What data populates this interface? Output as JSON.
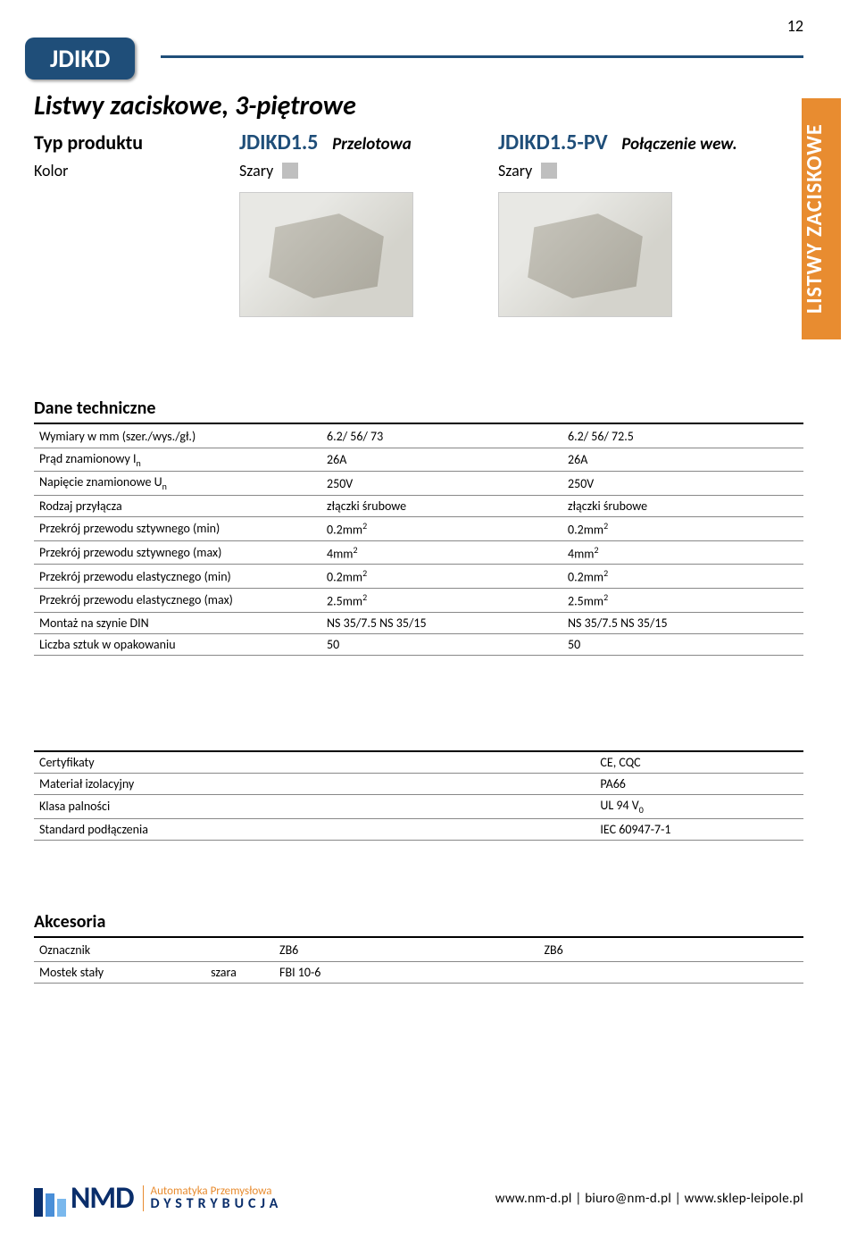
{
  "page_number": "12",
  "title_badge": "JDIKD",
  "subtitle": "Listwy zaciskowe, 3-piętrowe",
  "side_tab": "LISTWY ZACISKOWE",
  "header": {
    "typ_label": "Typ produktu",
    "kolor_label": "Kolor",
    "product_a": {
      "name": "JDIKD1.5",
      "desc": "Przelotowa",
      "color": "Szary",
      "swatch": "#bfbfbf"
    },
    "product_b": {
      "name": "JDIKD1.5-PV",
      "desc": "Połączenie wew.",
      "color": "Szary",
      "swatch": "#bfbfbf"
    }
  },
  "dane": {
    "title": "Dane techniczne",
    "rows": [
      {
        "label": "Wymiary w mm (szer./wys./gł.)",
        "a": "6.2/ 56/ 73",
        "b": "6.2/ 56/ 72.5"
      },
      {
        "label_html": "Prąd znamionowy I<sub>n</sub>",
        "a": "26A",
        "b": "26A"
      },
      {
        "label_html": "Napięcie znamionowe U<sub>n</sub>",
        "a": "250V",
        "b": "250V"
      },
      {
        "label": "Rodzaj przyłącza",
        "a": "złączki śrubowe",
        "b": "złączki śrubowe"
      },
      {
        "label": "Przekrój przewodu sztywnego (min)",
        "a_html": "0.2mm<sup>2</sup>",
        "b_html": "0.2mm<sup>2</sup>"
      },
      {
        "label": "Przekrój przewodu sztywnego (max)",
        "a_html": "4mm<sup>2</sup>",
        "b_html": "4mm<sup>2</sup>"
      },
      {
        "label": "Przekrój przewodu elastycznego (min)",
        "a_html": "0.2mm<sup>2</sup>",
        "b_html": "0.2mm<sup>2</sup>"
      },
      {
        "label": "Przekrój przewodu elastycznego (max)",
        "a_html": "2.5mm<sup>2</sup>",
        "b_html": "2.5mm<sup>2</sup>"
      },
      {
        "label": "Montaż na szynie DIN",
        "a": "NS 35/7.5 NS 35/15",
        "b": "NS 35/7.5 NS 35/15"
      },
      {
        "label": "Liczba sztuk w opakowaniu",
        "a": "50",
        "b": "50"
      }
    ]
  },
  "cert": {
    "rows": [
      {
        "label": "Certyfikaty",
        "val": "CE, CQC"
      },
      {
        "label": "Materiał izolacyjny",
        "val": "PA66"
      },
      {
        "label": "Klasa palności",
        "val_html": "UL 94 V<sub>0</sub>"
      },
      {
        "label": "Standard podłączenia",
        "val": "IEC 60947-7-1"
      }
    ]
  },
  "akcesoria": {
    "title": "Akcesoria",
    "rows": [
      {
        "label": "Oznacznik",
        "sub": "",
        "a": "ZB6",
        "b": "ZB6"
      },
      {
        "label": "Mostek stały",
        "sub": "szara",
        "a": "FBI 10-6",
        "b": ""
      }
    ]
  },
  "footer": {
    "logo_text": "NMD",
    "logo_line1": "Automatyka Przemysłowa",
    "logo_line2": "DYSTRYBUCJA",
    "links": "www.nm-d.pl  |  biuro@nm-d.pl  |  www.sklep-leipole.pl"
  }
}
